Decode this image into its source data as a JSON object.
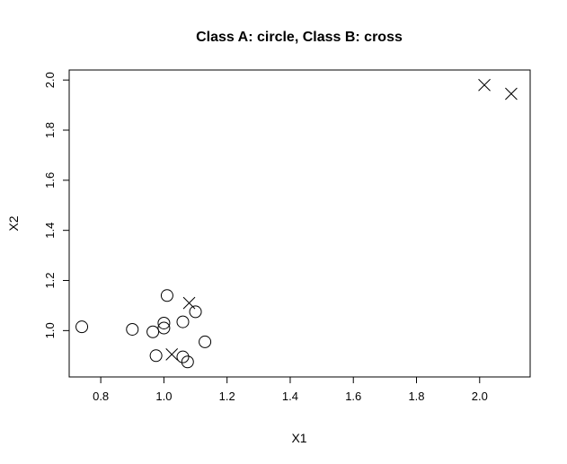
{
  "chart_data": {
    "type": "scatter",
    "title": "Class A: circle, Class B: cross",
    "xlabel": "X1",
    "ylabel": "X2",
    "xlim": [
      0.7,
      2.16
    ],
    "ylim": [
      0.815,
      2.04
    ],
    "xticks": [
      0.8,
      1.0,
      1.2,
      1.4,
      1.6,
      1.8,
      2.0
    ],
    "xtick_labels": [
      "0.8",
      "1.0",
      "1.2",
      "1.4",
      "1.6",
      "1.8",
      "2.0"
    ],
    "yticks": [
      1.0,
      1.2,
      1.4,
      1.6,
      1.8,
      2.0
    ],
    "ytick_labels": [
      "1.0",
      "1.2",
      "1.4",
      "1.6",
      "1.8",
      "2.0"
    ],
    "grid": false,
    "series": [
      {
        "marker": "circle",
        "x": [
          0.74,
          0.9,
          0.965,
          0.975,
          1.0,
          1.0,
          1.01,
          1.06,
          1.06,
          1.075,
          1.1,
          1.13
        ],
        "y": [
          1.015,
          1.005,
          0.995,
          0.9,
          1.01,
          1.03,
          1.14,
          1.035,
          0.895,
          0.875,
          1.075,
          0.955
        ]
      },
      {
        "marker": "cross",
        "x": [
          1.025,
          1.08,
          2.015,
          2.1
        ],
        "y": [
          0.905,
          1.11,
          1.98,
          1.945
        ]
      }
    ]
  }
}
